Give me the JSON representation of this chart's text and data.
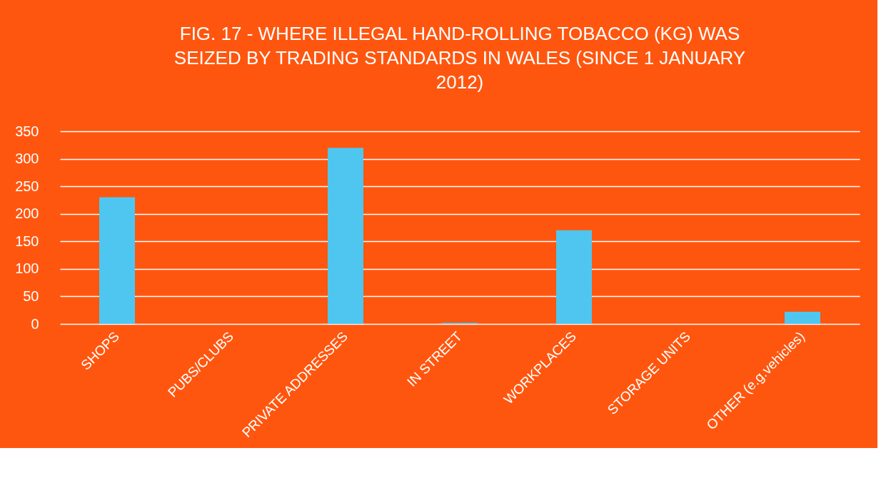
{
  "chart_data": {
    "type": "bar",
    "title": "FIG. 17 - WHERE ILLEGAL HAND-ROLLING TOBACCO (KG) WAS SEIZED BY TRADING STANDARDS IN WALES (SINCE 1 JANUARY 2012)",
    "categories": [
      "SHOPS",
      "PUBS/CLUBS",
      "PRIVATE ADDRESSES",
      "IN STREET",
      "WORKPLACES",
      "STORAGE UNITS",
      "OTHER (e.g.vehicles)"
    ],
    "values": [
      230,
      0,
      320,
      2,
      170,
      0,
      22
    ],
    "color": "#4fc6f0",
    "ylim": [
      0,
      350
    ],
    "yticks": [
      0,
      50,
      100,
      150,
      200,
      250,
      300,
      350
    ],
    "grid": "y"
  }
}
